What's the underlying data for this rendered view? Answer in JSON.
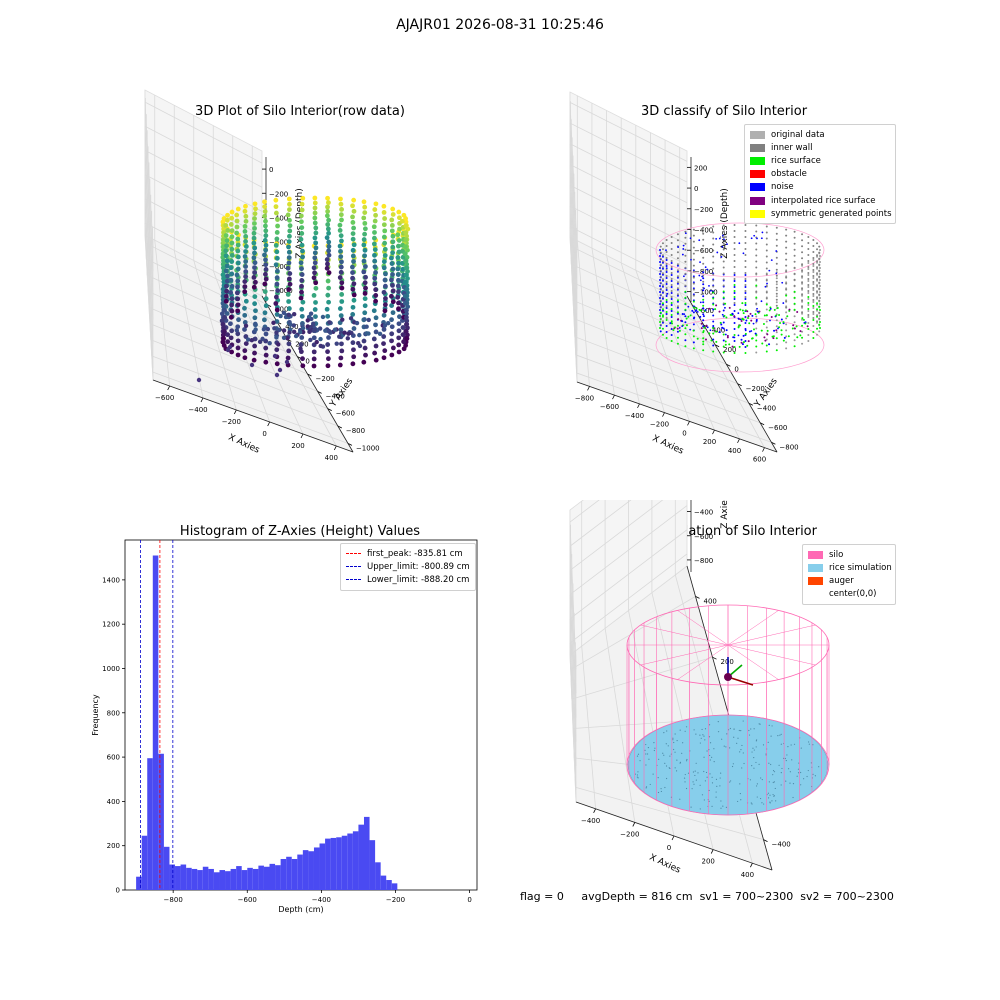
{
  "suptitle": "AJAJR01 2026-08-31 10:25:46",
  "panels": {
    "raw": {
      "title": "3D Plot of Silo Interior(row data)",
      "x_ticks": [
        "−600",
        "−400",
        "−200",
        "0",
        "200",
        "400"
      ],
      "y_ticks": [
        "600",
        "400",
        "200",
        "0",
        "−200",
        "−400",
        "−600",
        "−800",
        "−1000"
      ],
      "z_ticks": [
        "0",
        "−200",
        "−400",
        "−600",
        "−800",
        "−1000"
      ],
      "x_label": "X Axies",
      "y_label": "Y Axies",
      "z_label": "Z Axies (Depth)"
    },
    "classify": {
      "title": "3D classify of Silo Interior",
      "x_ticks": [
        "−800",
        "−600",
        "−400",
        "−200",
        "0",
        "200",
        "400",
        "600"
      ],
      "y_ticks": [
        "600",
        "400",
        "200",
        "0",
        "−200",
        "−400",
        "−600",
        "−800"
      ],
      "z_ticks": [
        "200",
        "0",
        "−200",
        "−400",
        "−600",
        "−800",
        "−1000"
      ],
      "x_label": "X Axies",
      "y_label": "Y Axies",
      "z_label": "Z Axies (Depth)",
      "legend": [
        {
          "label": "original data",
          "color": "#b0b0b0"
        },
        {
          "label": "inner wall",
          "color": "#808080"
        },
        {
          "label": "rice surface",
          "color": "#00ee00"
        },
        {
          "label": "obstacle",
          "color": "#ff0000"
        },
        {
          "label": "noise",
          "color": "#0000ff"
        },
        {
          "label": "interpolated rice surface",
          "color": "#800080"
        },
        {
          "label": "symmetric generated points",
          "color": "#ffff00"
        }
      ]
    },
    "simulation": {
      "title": "3D simulation of Silo Interior",
      "x_ticks": [
        "−400",
        "−200",
        "0",
        "200",
        "400"
      ],
      "y_ticks": [
        "400",
        "200",
        "0",
        "−200",
        "−400"
      ],
      "z_ticks": [
        "200",
        "0",
        "−200",
        "−400",
        "−600",
        "−800"
      ],
      "x_label": "X Axies",
      "y_label": "Y Axies",
      "z_label": "Z Axies (Depth)",
      "legend": [
        {
          "label": "silo",
          "color": "#ff69b4"
        },
        {
          "label": "rice simulation",
          "color": "#87ceeb"
        },
        {
          "label": "auger",
          "color": "#ff4500"
        },
        {
          "label": "center(0,0)",
          "color": ""
        }
      ]
    }
  },
  "chart_data": {
    "type": "bar",
    "title": "Histogram of Z-Axies (Height) Values",
    "xlabel": "Depth (cm)",
    "ylabel": "Frequency",
    "xlim": [
      -930,
      20
    ],
    "ylim": [
      0,
      1580
    ],
    "x_ticks": [
      -800,
      -600,
      -400,
      -200,
      0
    ],
    "y_ticks": [
      0,
      200,
      400,
      600,
      800,
      1000,
      1200,
      1400
    ],
    "bin_width": 15,
    "bin_start": -900,
    "values": [
      60,
      245,
      595,
      1510,
      615,
      195,
      115,
      108,
      115,
      100,
      95,
      90,
      105,
      95,
      80,
      90,
      85,
      95,
      108,
      90,
      100,
      95,
      110,
      105,
      118,
      112,
      140,
      150,
      140,
      160,
      180,
      175,
      192,
      210,
      232,
      235,
      238,
      245,
      255,
      265,
      295,
      330,
      225,
      125,
      65,
      45,
      30
    ],
    "bar_color": "#4a4af2",
    "lines": [
      {
        "label": "first_peak: -835.81 cm",
        "x": -835.81,
        "color": "#ff0000"
      },
      {
        "label": "Upper_limit: -800.89 cm",
        "x": -800.89,
        "color": "#0000cc"
      },
      {
        "label": "Lower_limit: -888.20 cm",
        "x": -888.2,
        "color": "#0000cc"
      }
    ]
  },
  "footer": {
    "flag": "flag = 0",
    "avg": "avgDepth = 816 cm",
    "sv1": "sv1 = 700~2300",
    "sv2": "sv2 = 700~2300"
  }
}
